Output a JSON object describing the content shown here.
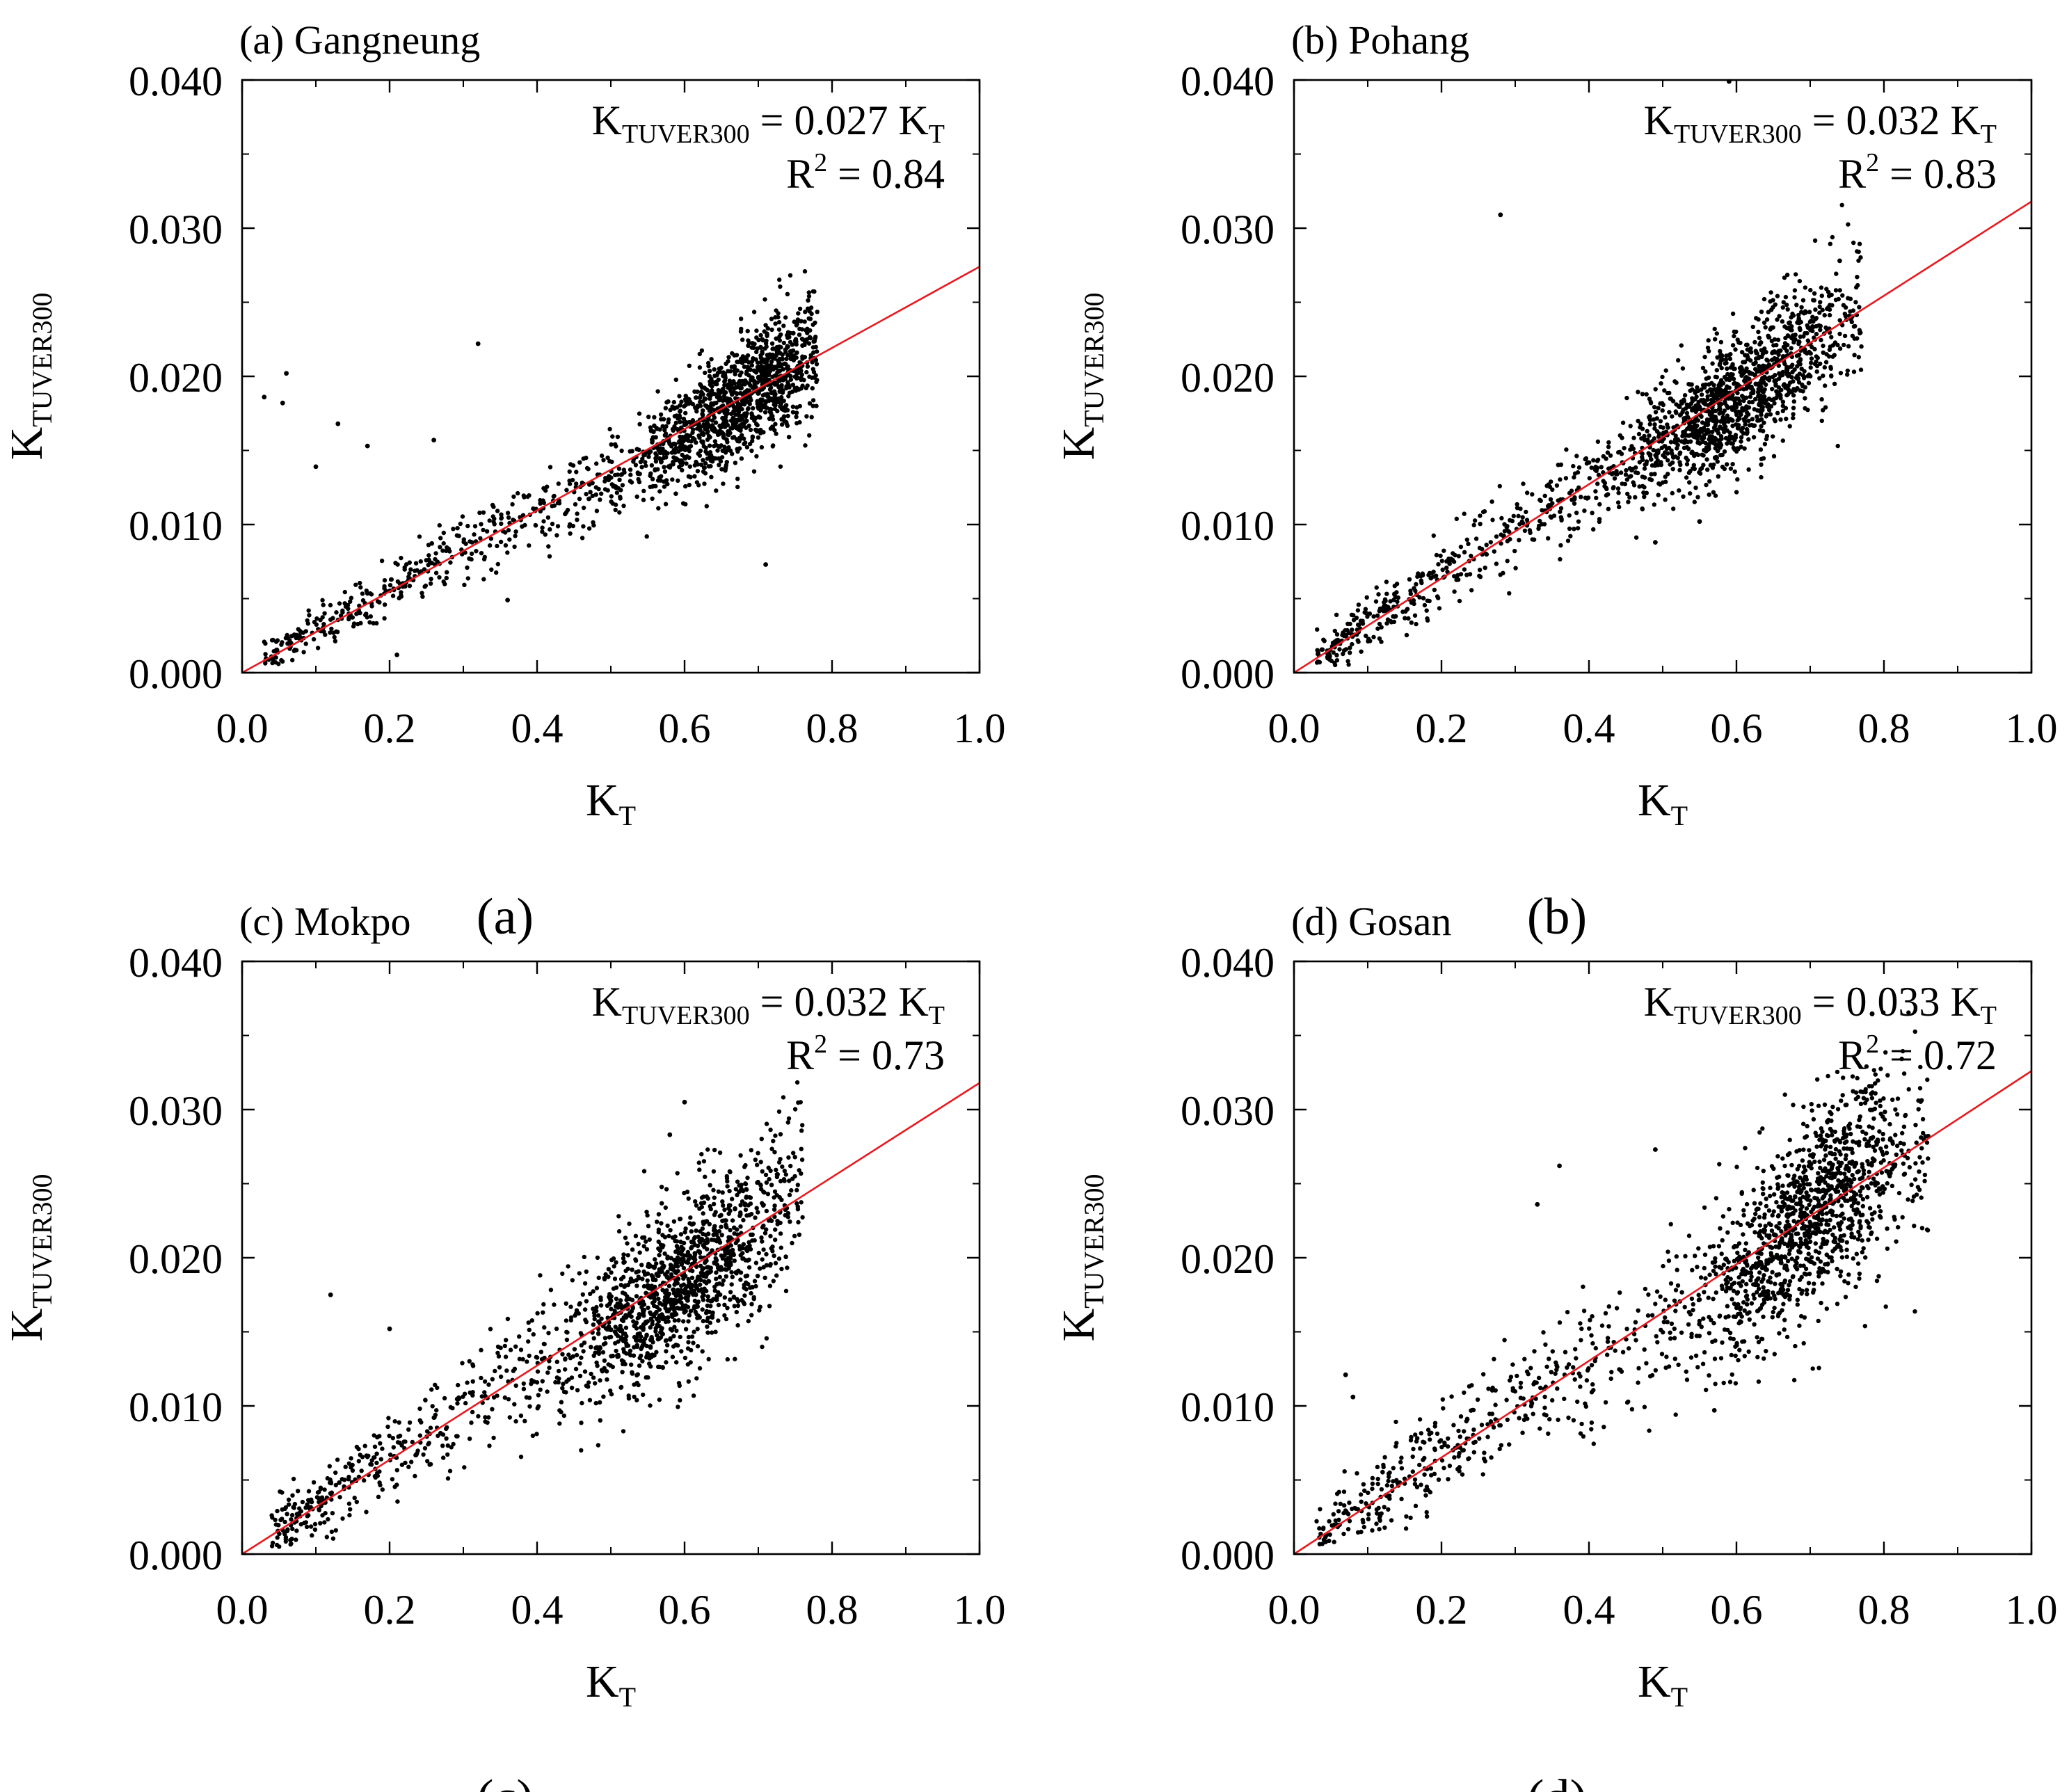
{
  "figure": {
    "panels": [
      {
        "id": "a",
        "title": "(a) Gangneung",
        "caption_letter": "a",
        "caption": "(a)",
        "slope": 0.0274,
        "eq_label": "K",
        "eq_sub": "TUVER300",
        "eq_value": " = 0.027 K",
        "eq_value_sub": "T",
        "r2_label": "R",
        "r2_sup": "2",
        "r2_value": " = 0.84",
        "xlabel": "K",
        "xlabel_sub": "T",
        "ylabel": "K",
        "ylabel_sub": "TUVER300"
      },
      {
        "id": "b",
        "title": "(b) Pohang",
        "caption_letter": "b",
        "caption": "(b)",
        "slope": 0.0318,
        "eq_label": "K",
        "eq_sub": "TUVER300",
        "eq_value": " = 0.032 K",
        "eq_value_sub": "T",
        "r2_label": "R",
        "r2_sup": "2",
        "r2_value": " = 0.83",
        "xlabel": "K",
        "xlabel_sub": "T",
        "ylabel": "K",
        "ylabel_sub": "TUVER300"
      },
      {
        "id": "c",
        "title": "(c) Mokpo",
        "caption_letter": "c",
        "caption": "(c)",
        "slope": 0.0318,
        "eq_label": "K",
        "eq_sub": "TUVER300",
        "eq_value": " = 0.032 K",
        "eq_value_sub": "T",
        "r2_label": "R",
        "r2_sup": "2",
        "r2_value": " = 0.73",
        "xlabel": "K",
        "xlabel_sub": "T",
        "ylabel": "K",
        "ylabel_sub": "TUVER300"
      },
      {
        "id": "d",
        "title": "(d) Gosan",
        "caption_letter": "d",
        "caption": "(d)",
        "slope": 0.0326,
        "eq_label": "K",
        "eq_sub": "TUVER300",
        "eq_value": " = 0.033 K",
        "eq_value_sub": "T",
        "r2_label": "R",
        "r2_sup": "2",
        "r2_value": " = 0.72",
        "xlabel": "K",
        "xlabel_sub": "T",
        "ylabel": "K",
        "ylabel_sub": "TUVER300"
      }
    ]
  },
  "chart_data": [
    {
      "type": "scatter",
      "title": "(a) Gangneung",
      "xlabel": "K_T",
      "ylabel": "K_TUVER300",
      "xlim": [
        0.0,
        1.0
      ],
      "ylim": [
        0.0,
        0.04
      ],
      "xticks": [
        "0.0",
        "0.2",
        "0.4",
        "0.6",
        "0.8",
        "1.0"
      ],
      "yticks": [
        "0.000",
        "0.010",
        "0.020",
        "0.030",
        "0.040"
      ],
      "fit_line": {
        "slope": 0.0274,
        "intercept": 0.0,
        "color": "#e8191f",
        "label": "K_TUVER300 = 0.027 K_T"
      },
      "r2": 0.84,
      "point_cloud": {
        "x_range": [
          0.03,
          0.78
        ],
        "x_peak": 0.68,
        "spread": 0.0016,
        "count": 1700,
        "seed": 11
      },
      "outliers": [
        [
          0.03,
          0.0186
        ],
        [
          0.055,
          0.0182
        ],
        [
          0.06,
          0.0202
        ],
        [
          0.1,
          0.0139
        ],
        [
          0.13,
          0.0168
        ],
        [
          0.17,
          0.0153
        ],
        [
          0.26,
          0.0157
        ],
        [
          0.32,
          0.0222
        ],
        [
          0.71,
          0.0073
        ],
        [
          0.21,
          0.0012
        ],
        [
          0.36,
          0.0049
        ]
      ]
    },
    {
      "type": "scatter",
      "title": "(b) Pohang",
      "xlabel": "K_T",
      "ylabel": "K_TUVER300",
      "xlim": [
        0.0,
        1.0
      ],
      "ylim": [
        0.0,
        0.04
      ],
      "xticks": [
        "0.0",
        "0.2",
        "0.4",
        "0.6",
        "0.8",
        "1.0"
      ],
      "yticks": [
        "0.000",
        "0.010",
        "0.020",
        "0.030",
        "0.040"
      ],
      "fit_line": {
        "slope": 0.0318,
        "intercept": 0.0,
        "color": "#e8191f",
        "label": "K_TUVER300 = 0.032 K_T"
      },
      "r2": 0.83,
      "point_cloud": {
        "x_range": [
          0.03,
          0.77
        ],
        "x_peak": 0.6,
        "spread": 0.0019,
        "count": 1700,
        "seed": 23
      },
      "outliers": [
        [
          0.28,
          0.0309
        ],
        [
          0.74,
          0.0278
        ],
        [
          0.49,
          0.0088
        ],
        [
          0.59,
          0.0399
        ],
        [
          0.55,
          0.0102
        ]
      ]
    },
    {
      "type": "scatter",
      "title": "(c) Mokpo",
      "xlabel": "K_T",
      "ylabel": "K_TUVER300",
      "xlim": [
        0.0,
        1.0
      ],
      "ylim": [
        0.0,
        0.04
      ],
      "xticks": [
        "0.0",
        "0.2",
        "0.4",
        "0.6",
        "0.8",
        "1.0"
      ],
      "yticks": [
        "0.000",
        "0.010",
        "0.020",
        "0.030",
        "0.040"
      ],
      "fit_line": {
        "slope": 0.0318,
        "intercept": 0.0,
        "color": "#e8191f",
        "label": "K_TUVER300 = 0.032 K_T"
      },
      "r2": 0.73,
      "point_cloud": {
        "x_range": [
          0.04,
          0.76
        ],
        "x_peak": 0.6,
        "spread": 0.0025,
        "count": 1700,
        "seed": 37
      },
      "outliers": [
        [
          0.12,
          0.0175
        ],
        [
          0.6,
          0.0305
        ],
        [
          0.58,
          0.0283
        ],
        [
          0.2,
          0.0152
        ]
      ]
    },
    {
      "type": "scatter",
      "title": "(d) Gosan",
      "xlabel": "K_T",
      "ylabel": "K_TUVER300",
      "xlim": [
        0.0,
        1.0
      ],
      "ylim": [
        0.0,
        0.04
      ],
      "xticks": [
        "0.0",
        "0.2",
        "0.4",
        "0.6",
        "0.8",
        "1.0"
      ],
      "yticks": [
        "0.000",
        "0.010",
        "0.020",
        "0.030",
        "0.040"
      ],
      "fit_line": {
        "slope": 0.0326,
        "intercept": 0.0,
        "color": "#e8191f",
        "label": "K_TUVER300 = 0.033 K_T"
      },
      "r2": 0.72,
      "point_cloud": {
        "x_range": [
          0.03,
          0.86
        ],
        "x_peak": 0.7,
        "spread": 0.0026,
        "count": 1700,
        "seed": 51
      },
      "outliers": [
        [
          0.07,
          0.0121
        ],
        [
          0.08,
          0.0106
        ],
        [
          0.36,
          0.0262
        ],
        [
          0.49,
          0.0273
        ],
        [
          0.86,
          0.0282
        ],
        [
          0.33,
          0.0236
        ],
        [
          0.57,
          0.0097
        ]
      ]
    }
  ]
}
